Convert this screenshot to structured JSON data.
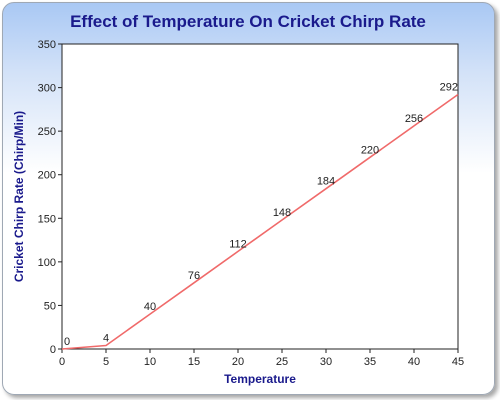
{
  "chart_data": {
    "type": "line",
    "title": "Effect of Temperature On Cricket Chirp Rate",
    "xlabel": "Temperature",
    "ylabel": "Cricket Chirp Rate (Chirp/Min)",
    "x": [
      0,
      5,
      10,
      15,
      20,
      25,
      30,
      35,
      40,
      45
    ],
    "series": [
      {
        "values": [
          0,
          4,
          40,
          76,
          112,
          148,
          184,
          220,
          256,
          292
        ],
        "color": "#f06a6a"
      }
    ],
    "xlim": [
      0,
      45
    ],
    "ylim": [
      0,
      350
    ],
    "xticks": [
      "0",
      "5",
      "10",
      "15",
      "20",
      "25",
      "30",
      "35",
      "40",
      "45"
    ],
    "yticks": [
      "0",
      "50",
      "100",
      "150",
      "200",
      "250",
      "300",
      "350"
    ],
    "data_labels": [
      "0",
      "4",
      "40",
      "76",
      "112",
      "148",
      "184",
      "220",
      "256",
      "292"
    ],
    "grid": false,
    "legend": "none"
  }
}
